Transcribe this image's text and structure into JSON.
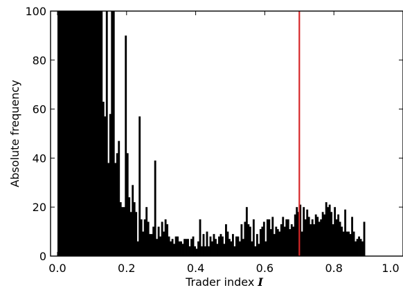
{
  "chart_data": {
    "type": "bar",
    "xlabel": "Trader index",
    "xlabel_variable": "I",
    "ylabel": "Absolute frequency",
    "xlim": [
      -0.02,
      1.0
    ],
    "ylim": [
      0,
      100
    ],
    "x_ticks": [
      "0.0",
      "0.2",
      "0.4",
      "0.6",
      "0.8",
      "1.0"
    ],
    "y_ticks": [
      "0",
      "20",
      "40",
      "60",
      "80",
      "100"
    ],
    "grid": false,
    "bin_width": 0.005,
    "bar_color": "#000000",
    "vline": {
      "x": 0.7,
      "color": "#d62728"
    },
    "x_start": 0.0,
    "values": [
      100,
      100,
      100,
      100,
      100,
      100,
      100,
      100,
      100,
      100,
      100,
      100,
      100,
      100,
      100,
      100,
      100,
      100,
      100,
      100,
      100,
      100,
      100,
      100,
      100,
      100,
      63,
      57,
      100,
      38,
      58,
      100,
      100,
      38,
      42,
      47,
      22,
      20,
      20,
      90,
      42,
      24,
      18,
      29,
      22,
      18,
      6,
      57,
      15,
      10,
      15,
      20,
      14,
      9,
      9,
      12,
      39,
      7,
      12,
      8,
      14,
      10,
      15,
      13,
      8,
      6,
      7,
      5,
      8,
      8,
      6,
      6,
      5,
      7,
      7,
      7,
      4,
      7,
      8,
      4,
      3,
      6,
      15,
      4,
      9,
      4,
      10,
      4,
      8,
      6,
      9,
      7,
      5,
      8,
      9,
      8,
      5,
      13,
      10,
      7,
      6,
      9,
      4,
      8,
      8,
      6,
      13,
      7,
      14,
      20,
      13,
      12,
      6,
      15,
      4,
      9,
      5,
      11,
      12,
      14,
      6,
      15,
      15,
      11,
      16,
      9,
      12,
      11,
      10,
      13,
      16,
      12,
      15,
      15,
      11,
      13,
      12,
      17,
      20,
      18,
      21,
      10,
      20,
      15,
      19,
      16,
      13,
      15,
      13,
      17,
      16,
      14,
      15,
      18,
      17,
      22,
      20,
      21,
      18,
      13,
      20,
      15,
      17,
      14,
      12,
      10,
      19,
      10,
      10,
      9,
      16,
      10,
      6,
      7,
      8,
      7,
      6,
      14
    ]
  }
}
